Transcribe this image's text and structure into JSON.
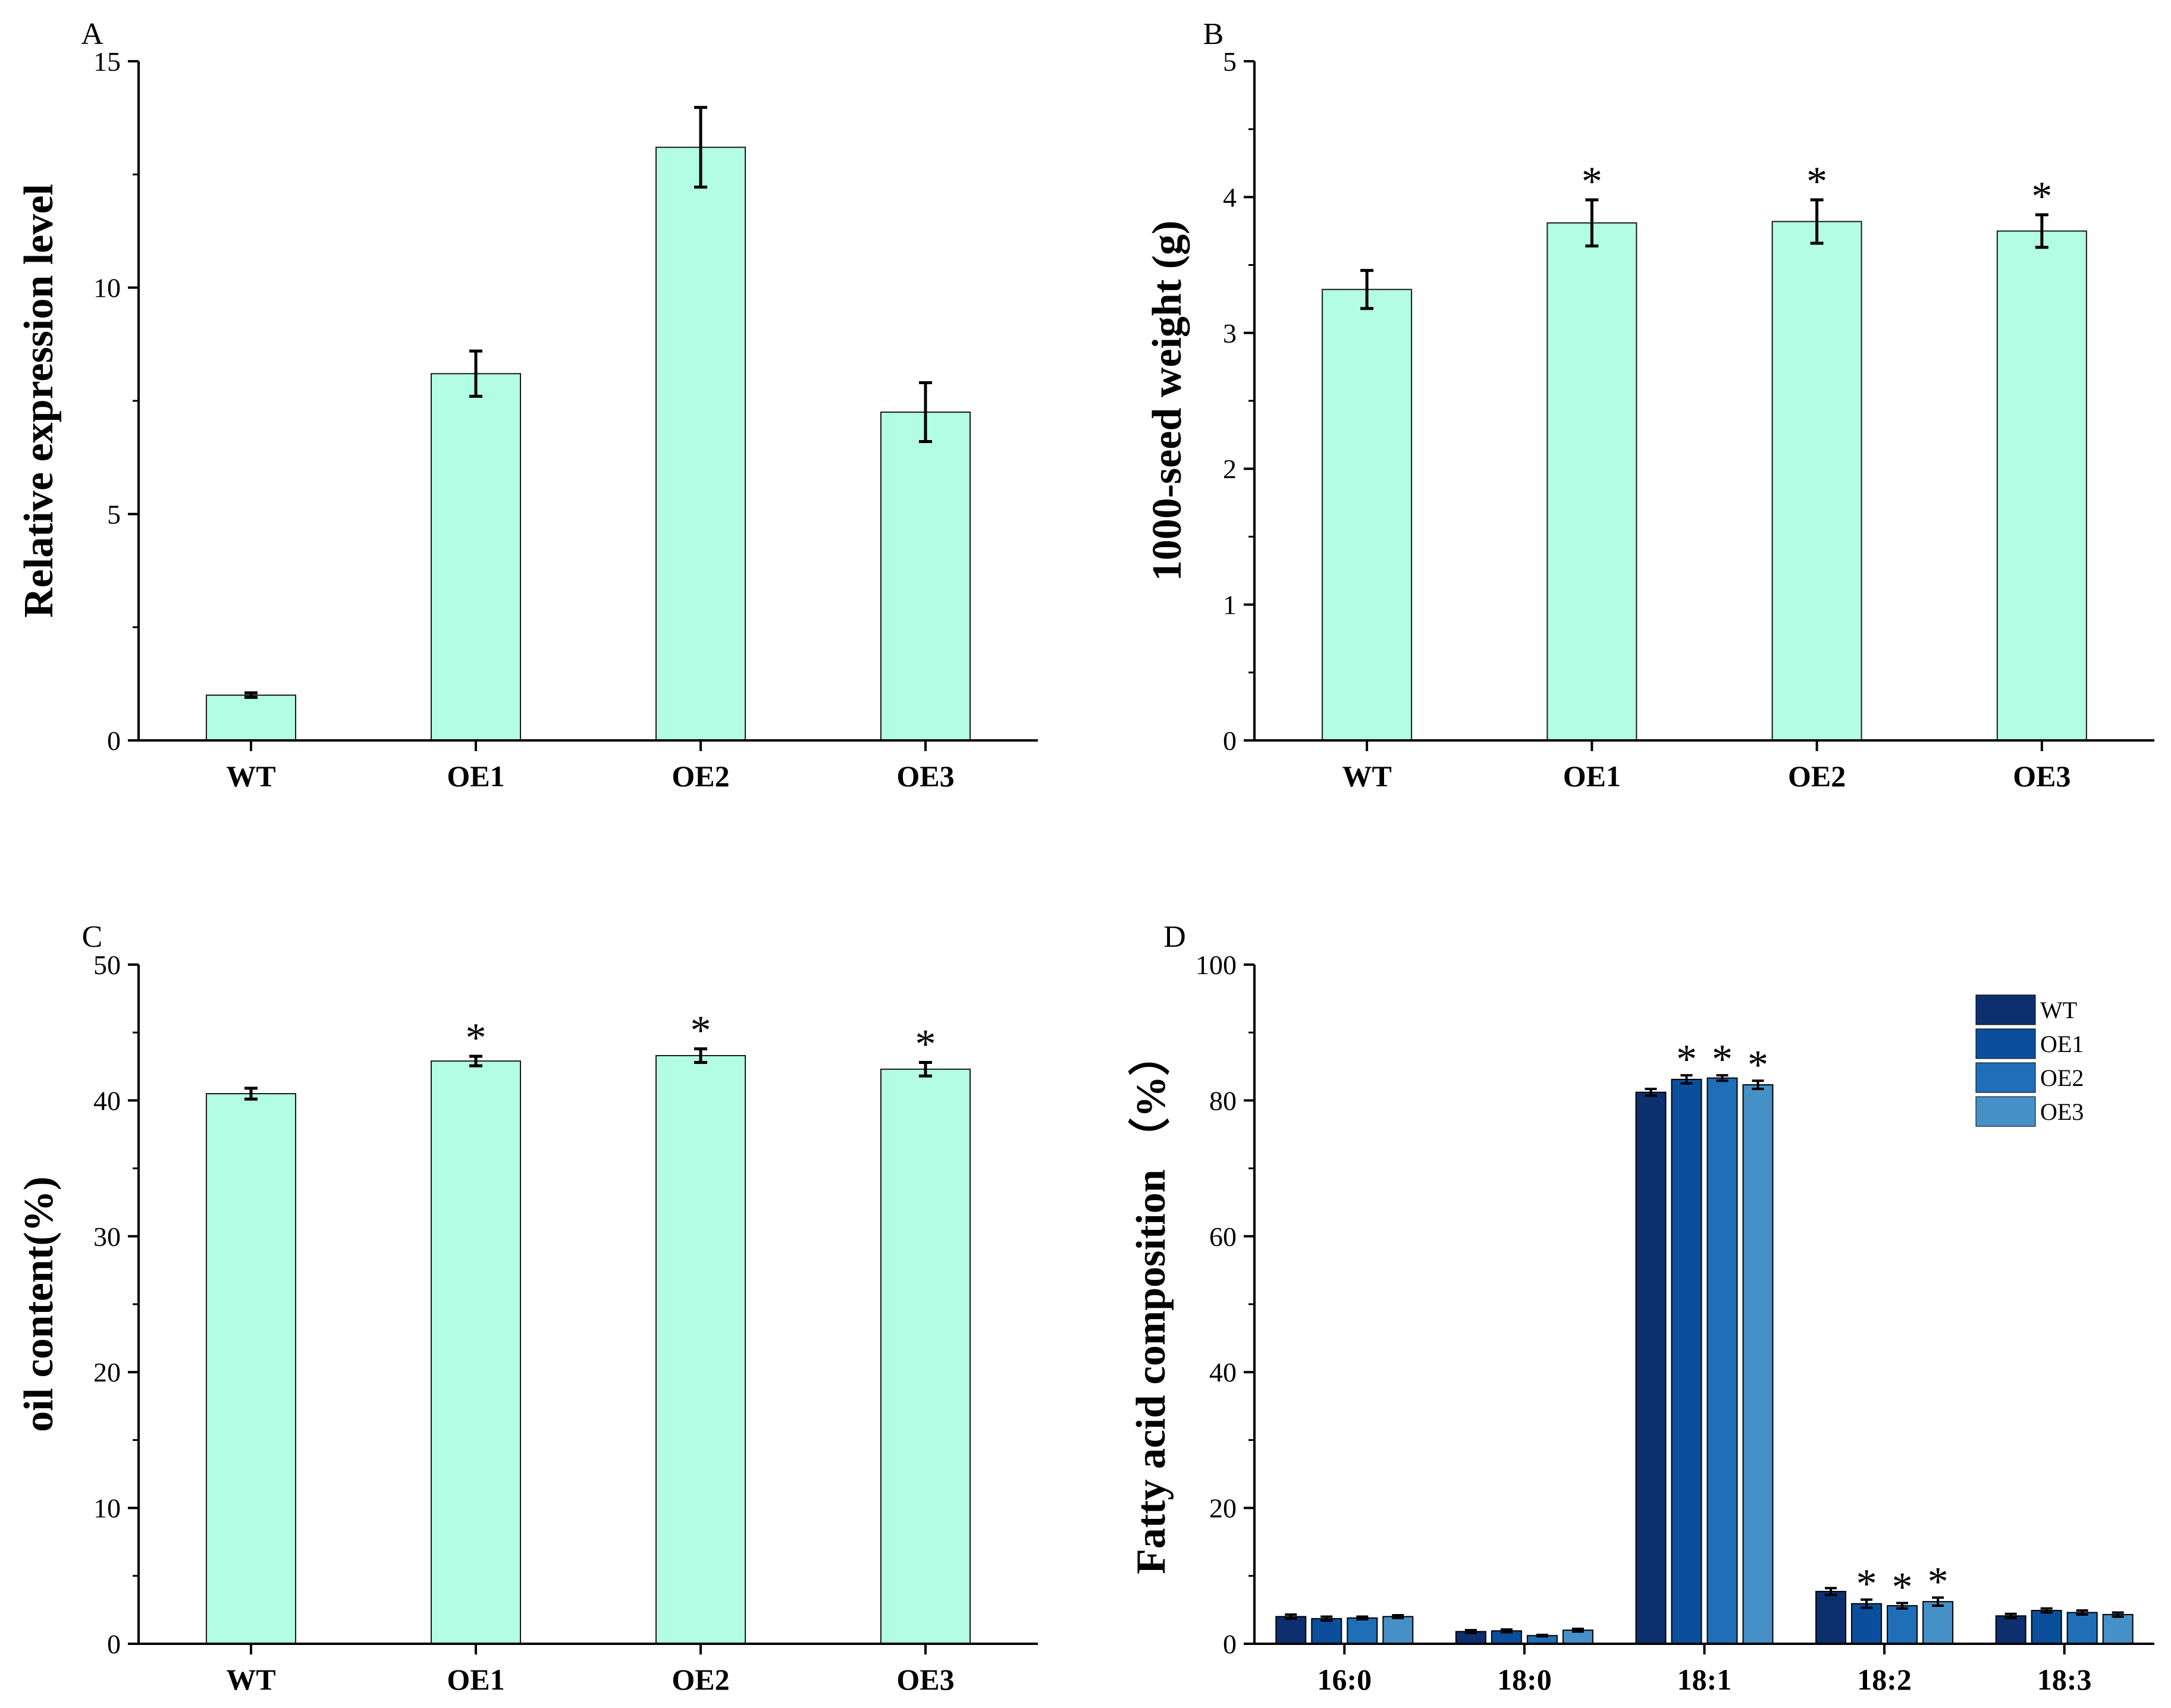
{
  "colors": {
    "bar_fill": "#b2fde4",
    "bar_stroke": "#1a1a1a",
    "series": [
      "#0d2f6e",
      "#0b4f9c",
      "#1f6fb8",
      "#4690c8"
    ]
  },
  "chart_data": [
    {
      "panel": "A",
      "type": "bar",
      "categories": [
        "WT",
        "OE1",
        "OE2",
        "OE3"
      ],
      "values": [
        1.0,
        8.1,
        13.1,
        7.25
      ],
      "errors": [
        0.05,
        0.5,
        0.88,
        0.65
      ],
      "significance": [
        "",
        "",
        "",
        ""
      ],
      "ylabel": "Relative expression level",
      "ylim": [
        0,
        15
      ],
      "yticks": [
        "0",
        "5",
        "10",
        "15"
      ]
    },
    {
      "panel": "B",
      "type": "bar",
      "categories": [
        "WT",
        "OE1",
        "OE2",
        "OE3"
      ],
      "values": [
        3.32,
        3.81,
        3.82,
        3.75
      ],
      "errors": [
        0.14,
        0.17,
        0.16,
        0.12
      ],
      "significance": [
        "",
        "*",
        "*",
        "*"
      ],
      "ylabel": "1000-seed weight (g)",
      "ylim": [
        0,
        5
      ],
      "yticks": [
        "0",
        "1",
        "2",
        "3",
        "4",
        "5"
      ]
    },
    {
      "panel": "C",
      "type": "bar",
      "categories": [
        "WT",
        "OE1",
        "OE2",
        "OE3"
      ],
      "values": [
        40.5,
        42.9,
        43.3,
        42.3
      ],
      "errors": [
        0.4,
        0.35,
        0.5,
        0.5
      ],
      "significance": [
        "",
        "*",
        "*",
        "*"
      ],
      "ylabel": "oil content(%)",
      "ylim": [
        0,
        50
      ],
      "yticks": [
        "0",
        "10",
        "20",
        "30",
        "40",
        "50"
      ]
    },
    {
      "panel": "D",
      "type": "bar",
      "categories": [
        "16:0",
        "18:0",
        "18:1",
        "18:2",
        "18:3"
      ],
      "series": [
        {
          "name": "WT",
          "values": [
            4.0,
            1.8,
            81.2,
            7.7,
            4.1
          ],
          "errors": [
            0.3,
            0.2,
            0.5,
            0.5,
            0.3
          ],
          "significance": [
            "",
            "",
            "",
            "",
            ""
          ]
        },
        {
          "name": "OE1",
          "values": [
            3.7,
            1.9,
            83.1,
            5.9,
            4.9
          ],
          "errors": [
            0.3,
            0.2,
            0.6,
            0.6,
            0.3
          ],
          "significance": [
            "",
            "",
            "*",
            "*",
            ""
          ]
        },
        {
          "name": "OE2",
          "values": [
            3.8,
            1.2,
            83.3,
            5.6,
            4.6
          ],
          "errors": [
            0.2,
            0.1,
            0.4,
            0.4,
            0.3
          ],
          "significance": [
            "",
            "",
            "*",
            "*",
            ""
          ]
        },
        {
          "name": "OE3",
          "values": [
            4.0,
            2.0,
            82.3,
            6.2,
            4.3
          ],
          "errors": [
            0.2,
            0.2,
            0.6,
            0.6,
            0.3
          ],
          "significance": [
            "",
            "",
            "*",
            "*",
            ""
          ]
        }
      ],
      "ylabel": "Fatty acid composition （%）",
      "ylim": [
        0,
        100
      ],
      "yticks": [
        "0",
        "20",
        "40",
        "60",
        "80",
        "100"
      ],
      "legend_position": "top-right"
    }
  ]
}
